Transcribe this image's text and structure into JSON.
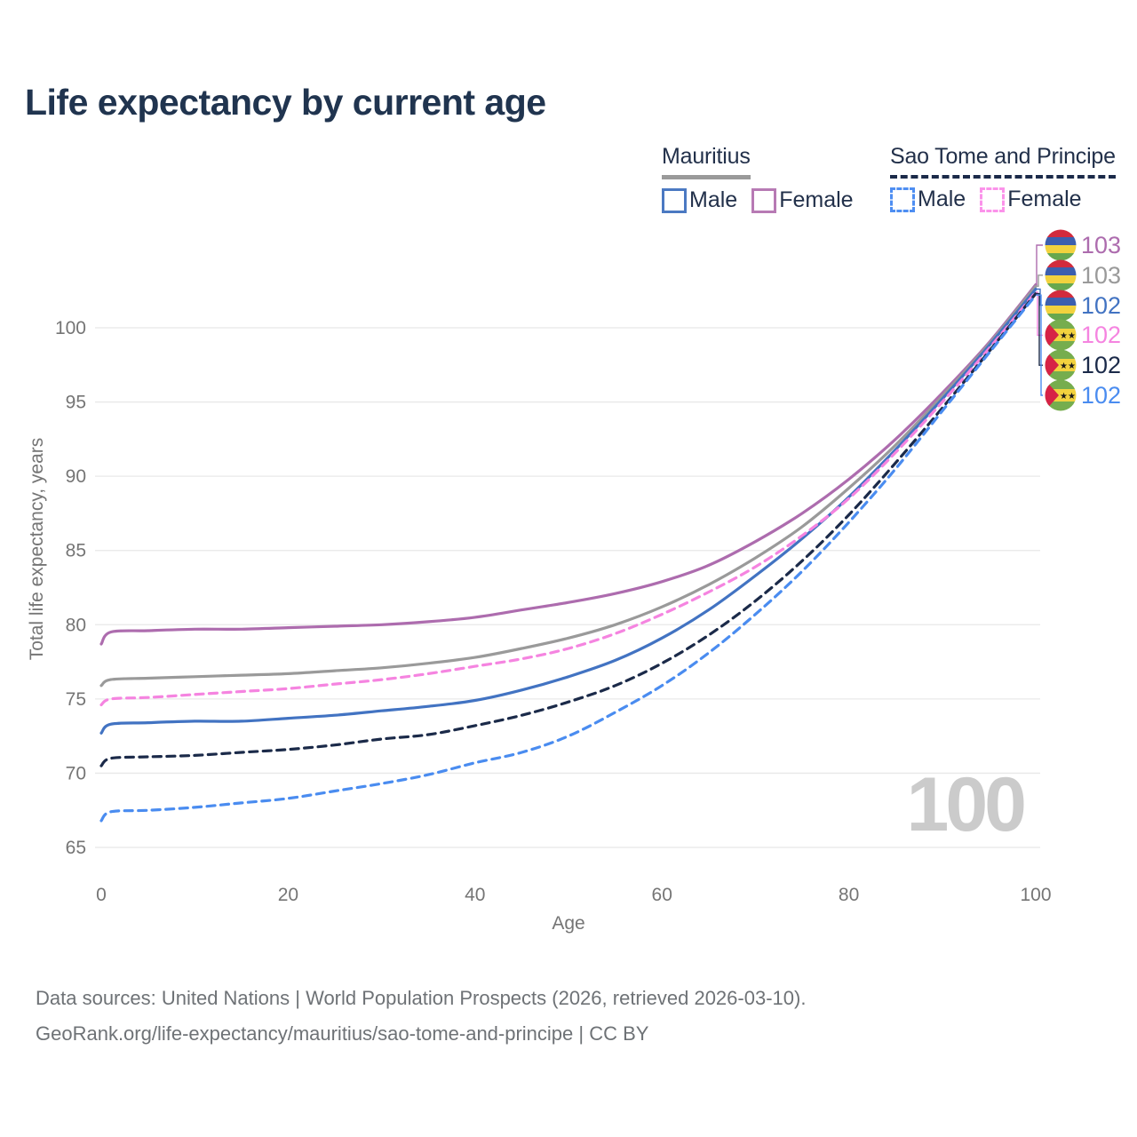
{
  "title": "Life expectancy by current age",
  "legend": {
    "groups": [
      {
        "country": "Mauritius",
        "line_style": "solid",
        "line_color": "#9a9a9a",
        "items": [
          {
            "label": "Male",
            "color": "#4b79c2",
            "dashed": false
          },
          {
            "label": "Female",
            "color": "#b77ab4",
            "dashed": false
          }
        ]
      },
      {
        "country": "Sao Tome and Principe",
        "line_style": "dashed",
        "line_color": "#1b2a49",
        "items": [
          {
            "label": "Male",
            "color": "#4e8ef2",
            "dashed": true
          },
          {
            "label": "Female",
            "color": "#fb93ea",
            "dashed": true
          }
        ]
      }
    ]
  },
  "axes": {
    "x": {
      "label": "Age",
      "ticks": [
        0,
        20,
        40,
        60,
        80,
        100
      ],
      "range": [
        0,
        100
      ]
    },
    "y": {
      "label": "Total life expectancy, years",
      "ticks": [
        65,
        70,
        75,
        80,
        85,
        90,
        95,
        100
      ],
      "range": [
        65,
        103.5
      ]
    }
  },
  "watermark": "100",
  "footer": {
    "line1": "Data sources: United Nations | World Population Prospects (2026, retrieved 2026-03-10).",
    "line2": "GeoRank.org/life-expectancy/mauritius/sao-tome-and-principe | CC BY"
  },
  "chart_data": {
    "type": "line",
    "title": "Life expectancy by current age",
    "xlabel": "Age",
    "ylabel": "Total life expectancy, years",
    "xlim": [
      0,
      100
    ],
    "ylim": [
      65,
      103.5
    ],
    "grid": "horizontal",
    "legend_position": "top-right",
    "x": [
      0,
      1,
      5,
      10,
      15,
      20,
      25,
      30,
      35,
      40,
      45,
      50,
      55,
      60,
      65,
      70,
      75,
      80,
      85,
      90,
      95,
      100
    ],
    "series": [
      {
        "id": "mauritius-female",
        "country": "Mauritius",
        "sex": "Female",
        "color": "#ad6cae",
        "dashed": false,
        "flag": "mauritius",
        "end_label": "103",
        "values": [
          78.7,
          79.5,
          79.6,
          79.7,
          79.7,
          79.8,
          79.9,
          80.0,
          80.2,
          80.5,
          81.0,
          81.5,
          82.1,
          82.9,
          84.0,
          85.6,
          87.5,
          89.8,
          92.5,
          95.6,
          99.0,
          102.9
        ]
      },
      {
        "id": "mauritius-total",
        "country": "Mauritius",
        "sex": "Both",
        "color": "#9a9a9a",
        "dashed": false,
        "flag": "mauritius",
        "end_label": "103",
        "values": [
          75.9,
          76.3,
          76.4,
          76.5,
          76.6,
          76.7,
          76.9,
          77.1,
          77.4,
          77.8,
          78.4,
          79.1,
          80.0,
          81.2,
          82.7,
          84.5,
          86.6,
          89.2,
          92.1,
          95.4,
          98.9,
          102.8
        ]
      },
      {
        "id": "mauritius-male",
        "country": "Mauritius",
        "sex": "Male",
        "color": "#4273c2",
        "dashed": false,
        "flag": "mauritius",
        "end_label": "102",
        "values": [
          72.7,
          73.3,
          73.4,
          73.5,
          73.5,
          73.7,
          73.9,
          74.2,
          74.5,
          74.9,
          75.6,
          76.5,
          77.6,
          79.1,
          81.0,
          83.3,
          85.8,
          88.6,
          91.8,
          95.2,
          98.8,
          102.6
        ]
      },
      {
        "id": "saotome-female",
        "country": "Sao Tome and Principe",
        "sex": "Female",
        "color": "#f584e0",
        "dashed": true,
        "flag": "saotome",
        "end_label": "102",
        "values": [
          74.6,
          75.0,
          75.1,
          75.3,
          75.5,
          75.7,
          76.0,
          76.3,
          76.7,
          77.2,
          77.7,
          78.4,
          79.4,
          80.7,
          82.2,
          83.9,
          86.0,
          88.5,
          91.6,
          95.0,
          98.6,
          102.4
        ]
      },
      {
        "id": "saotome-total",
        "country": "Sao Tome and Principe",
        "sex": "Both",
        "color": "#1b2a49",
        "dashed": true,
        "flag": "saotome",
        "end_label": "102",
        "values": [
          70.5,
          71.0,
          71.1,
          71.2,
          71.4,
          71.6,
          71.9,
          72.3,
          72.6,
          73.2,
          73.9,
          74.8,
          75.9,
          77.4,
          79.3,
          81.6,
          84.3,
          87.4,
          90.9,
          94.6,
          98.4,
          102.3
        ]
      },
      {
        "id": "saotome-male",
        "country": "Sao Tome and Principe",
        "sex": "Male",
        "color": "#4a8cf0",
        "dashed": true,
        "flag": "saotome",
        "end_label": "102",
        "values": [
          66.8,
          67.4,
          67.5,
          67.7,
          68.0,
          68.3,
          68.8,
          69.3,
          69.9,
          70.7,
          71.4,
          72.5,
          74.1,
          75.9,
          78.1,
          80.7,
          83.6,
          86.9,
          90.5,
          94.4,
          98.3,
          102.2
        ]
      }
    ]
  },
  "colors": {
    "title": "#20344f",
    "axis_text": "#757575",
    "gridline": "#e8e8e8",
    "watermark": "#cbcbcb",
    "footer_text": "#6e7276"
  }
}
